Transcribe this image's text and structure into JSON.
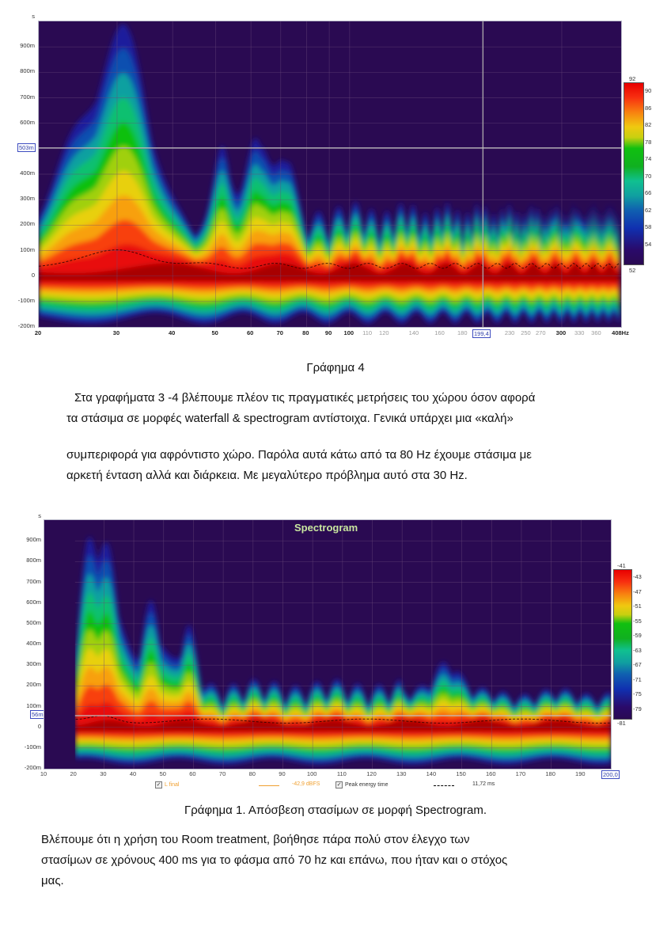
{
  "chart_data": [
    {
      "type": "heatmap",
      "title": "",
      "xlabel": "Hz",
      "ylabel": "s",
      "x_scale": "log",
      "x_ticks": [
        "20",
        "30",
        "40",
        "50",
        "60",
        "70",
        "80",
        "90",
        "100",
        "110",
        "120",
        "140",
        "160",
        "180",
        "199,4",
        "230",
        "250",
        "270",
        "300",
        "330",
        "360",
        "408Hz"
      ],
      "y_ticks": [
        "900m",
        "800m",
        "700m",
        "600m",
        "503m",
        "400m",
        "300m",
        "200m",
        "100m",
        "0",
        "-100m",
        "-200m"
      ],
      "xlim": [
        20,
        408
      ],
      "ylim": [
        -0.2,
        1.0
      ],
      "cursor": {
        "x": "199,4",
        "y": "503m"
      },
      "colorbar": {
        "min": 52,
        "max": 92,
        "ticks": [
          90,
          86,
          82,
          78,
          74,
          70,
          66,
          62,
          58,
          54
        ],
        "unit": "dB"
      },
      "notes": "Spectrogram-style waterfall: strongest long decay around 30 Hz (yellow/orange up to ~700ms); red band between ~-50ms and 100ms across spectrum; peak energy time line ~100ms at 30 Hz dropping to ~40ms above 80 Hz."
    },
    {
      "type": "heatmap",
      "title": "Spectrogram",
      "xlabel": "Hz",
      "ylabel": "s",
      "x_scale": "linear",
      "x_ticks": [
        "10",
        "20",
        "30",
        "40",
        "50",
        "60",
        "70",
        "80",
        "90",
        "100",
        "110",
        "120",
        "130",
        "140",
        "150",
        "160",
        "170",
        "180",
        "190",
        "200,0"
      ],
      "y_ticks": [
        "900m",
        "800m",
        "700m",
        "600m",
        "500m",
        "400m",
        "300m",
        "200m",
        "100m",
        "56m",
        "0",
        "-100m",
        "-200m"
      ],
      "xlim": [
        10,
        200
      ],
      "ylim": [
        -0.2,
        1.0
      ],
      "cursor": {
        "x": "200,0",
        "y": "56m"
      },
      "colorbar": {
        "min": -81,
        "max": -41,
        "ticks": [
          -43,
          -47,
          -51,
          -55,
          -59,
          -63,
          -67,
          -71,
          -75,
          -79
        ],
        "unit": "dBFS"
      },
      "legend": [
        {
          "label": "L final",
          "value": "-42,9 dBFS",
          "style": "orange line",
          "checked": true
        },
        {
          "label": "Peak energy time",
          "value": "11,72 ms",
          "style": "black dashed",
          "checked": true
        }
      ],
      "notes": "Energy below 20 Hz absent; strong decay 20-60 Hz to ~800ms; above 70 Hz decay mostly below ~300ms."
    }
  ],
  "chart1": {
    "axis_unit": "s",
    "y_ticks": [
      {
        "label": "900m",
        "v": 0.9
      },
      {
        "label": "800m",
        "v": 0.8
      },
      {
        "label": "700m",
        "v": 0.7
      },
      {
        "label": "600m",
        "v": 0.6
      },
      {
        "label": "400m",
        "v": 0.4
      },
      {
        "label": "300m",
        "v": 0.3
      },
      {
        "label": "200m",
        "v": 0.2
      },
      {
        "label": "100m",
        "v": 0.1
      },
      {
        "label": "0",
        "v": 0.0
      },
      {
        "label": "-100m",
        "v": -0.1
      },
      {
        "label": "-200m",
        "v": -0.2
      }
    ],
    "cursor_y_label": "503m",
    "cursor_x_label": "199,4",
    "x_ticks": [
      {
        "label": "20",
        "f": 20,
        "s": "bold"
      },
      {
        "label": "30",
        "f": 30,
        "s": "bold"
      },
      {
        "label": "40",
        "f": 40,
        "s": "bold"
      },
      {
        "label": "50",
        "f": 50,
        "s": "bold"
      },
      {
        "label": "60",
        "f": 60,
        "s": "bold"
      },
      {
        "label": "70",
        "f": 70,
        "s": "bold"
      },
      {
        "label": "80",
        "f": 80,
        "s": "bold"
      },
      {
        "label": "90",
        "f": 90,
        "s": "bold"
      },
      {
        "label": "100",
        "f": 100,
        "s": "bold"
      },
      {
        "label": "110",
        "f": 110,
        "s": "dim"
      },
      {
        "label": "120",
        "f": 120,
        "s": "dim"
      },
      {
        "label": "140",
        "f": 140,
        "s": "dim"
      },
      {
        "label": "160",
        "f": 160,
        "s": "dim"
      },
      {
        "label": "180",
        "f": 180,
        "s": "dim"
      },
      {
        "label": "230",
        "f": 230,
        "s": "dim"
      },
      {
        "label": "250",
        "f": 250,
        "s": "dim"
      },
      {
        "label": "270",
        "f": 270,
        "s": "dim"
      },
      {
        "label": "300",
        "f": 300,
        "s": "bold"
      },
      {
        "label": "330",
        "f": 330,
        "s": "dim"
      },
      {
        "label": "360",
        "f": 360,
        "s": "dim"
      },
      {
        "label": "408Hz",
        "f": 408,
        "s": "bold"
      }
    ],
    "cbar_top": "92",
    "cbar_bottom": "52",
    "cbar_ticks": [
      "90",
      "86",
      "82",
      "78",
      "74",
      "70",
      "66",
      "62",
      "58",
      "54"
    ]
  },
  "caption1": "Γράφημα 4",
  "paragraph1": {
    "line1": "Στα γραφήματα 3 -4 βλέπουμε πλέον τις πραγματικές μετρήσεις του χώρου όσον αφορά",
    "line2": "τα στάσιμα σε μορφές waterfall & spectrogram αντίστοιχα.  Γενικά υπάρχει μια «καλή»",
    "line3": "συμπεριφορά για αφρόντιστο χώρο. Παρόλα αυτά κάτω από τα 80 Hz έχουμε στάσιμα με",
    "line4": "αρκετή ένταση αλλά και διάρκεια. Με μεγαλύτερο πρόβλημα αυτό στα 30 Hz."
  },
  "chart2": {
    "title": "Spectrogram",
    "axis_unit": "s",
    "y_ticks": [
      {
        "label": "900m",
        "v": 0.9
      },
      {
        "label": "800m",
        "v": 0.8
      },
      {
        "label": "700m",
        "v": 0.7
      },
      {
        "label": "600m",
        "v": 0.6
      },
      {
        "label": "500m",
        "v": 0.5
      },
      {
        "label": "400m",
        "v": 0.4
      },
      {
        "label": "300m",
        "v": 0.3
      },
      {
        "label": "200m",
        "v": 0.2
      },
      {
        "label": "100m",
        "v": 0.1
      },
      {
        "label": "0",
        "v": 0.0
      },
      {
        "label": "-100m",
        "v": -0.1
      },
      {
        "label": "-200m",
        "v": -0.2
      }
    ],
    "cursor_y_label": "56m",
    "cursor_x_label": "200,0",
    "x_ticks": [
      "10",
      "20",
      "30",
      "40",
      "50",
      "60",
      "70",
      "80",
      "90",
      "100",
      "110",
      "120",
      "130",
      "140",
      "150",
      "160",
      "170",
      "180",
      "190"
    ],
    "cbar_top": "-41",
    "cbar_bottom": "-81",
    "cbar_ticks": [
      "-43",
      "-47",
      "-51",
      "-55",
      "-59",
      "-63",
      "-67",
      "-71",
      "-75",
      "-79"
    ],
    "legend": {
      "l_final_label": "L final",
      "l_final_value": "-42,9 dBFS",
      "peak_label": "Peak energy time",
      "peak_value": "11,72 ms",
      "check_glyph": "✓",
      "orange": "#f0a030"
    }
  },
  "caption2": "Γράφημα 1. Απόσβεση στασίμων σε μορφή Spectrogram.",
  "paragraph2": {
    "line1": "Βλέπουμε ότι η χρήση του Room treatment, βοήθησε πάρα πολύ στον έλεγχο των",
    "line2": "στασίμων σε χρόνους 400 ms για το φάσμα από  70 hz και επάνω, που ήταν και ο στόχος",
    "line3": "μας."
  }
}
